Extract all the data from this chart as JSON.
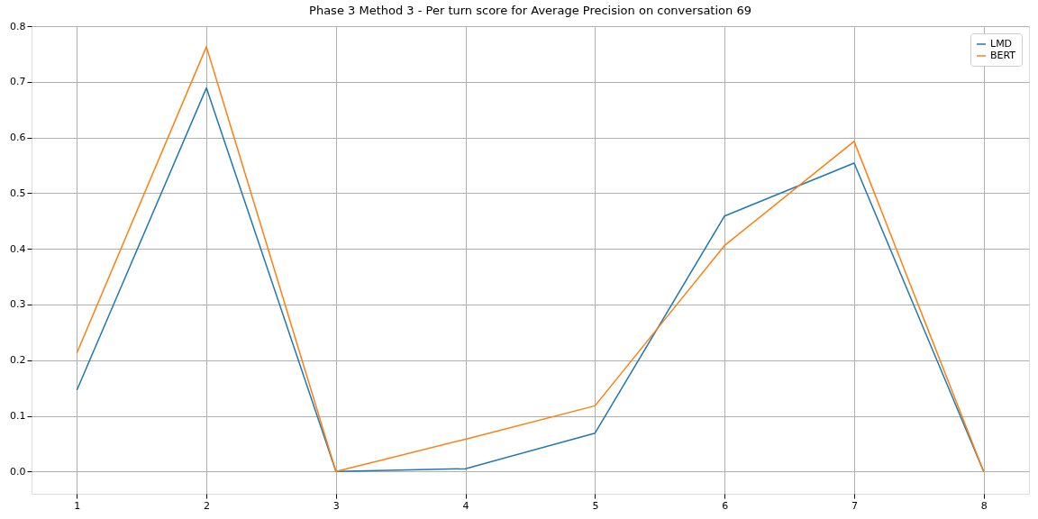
{
  "chart_data": {
    "type": "line",
    "title": "Phase 3 Method 3 - Per turn score for Average Precision on conversation 69",
    "x": [
      1,
      2,
      3,
      4,
      5,
      6,
      7,
      8
    ],
    "series": [
      {
        "name": "LMD",
        "color": "#1f77b4",
        "values": [
          0.146,
          0.689,
          0,
          0.005,
          0.069,
          0.459,
          0.554,
          0
        ]
      },
      {
        "name": "BERT",
        "color": "#ff7f0e",
        "values": [
          0.213,
          0.763,
          0,
          0.058,
          0.118,
          0.406,
          0.593,
          0
        ]
      }
    ],
    "xlim": [
      0.65,
      8.35
    ],
    "xticks": [
      1,
      2,
      3,
      4,
      5,
      6,
      7,
      8
    ],
    "ylim": [
      -0.04,
      0.8
    ],
    "yticks": [
      {
        "value": 0,
        "label": "0.0"
      },
      {
        "value": 0.1,
        "label": "0.1"
      },
      {
        "value": 0.2,
        "label": "0.2"
      },
      {
        "value": 0.3,
        "label": "0.3"
      },
      {
        "value": 0.4,
        "label": "0.4"
      },
      {
        "value": 0.5,
        "label": "0.5"
      },
      {
        "value": 0.6,
        "label": "0.6"
      },
      {
        "value": 0.7,
        "label": "0.7"
      },
      {
        "value": 0.8,
        "label": "0.8"
      }
    ],
    "grid": true,
    "legend": "top right",
    "marker": "none",
    "line_style": "solid"
  }
}
